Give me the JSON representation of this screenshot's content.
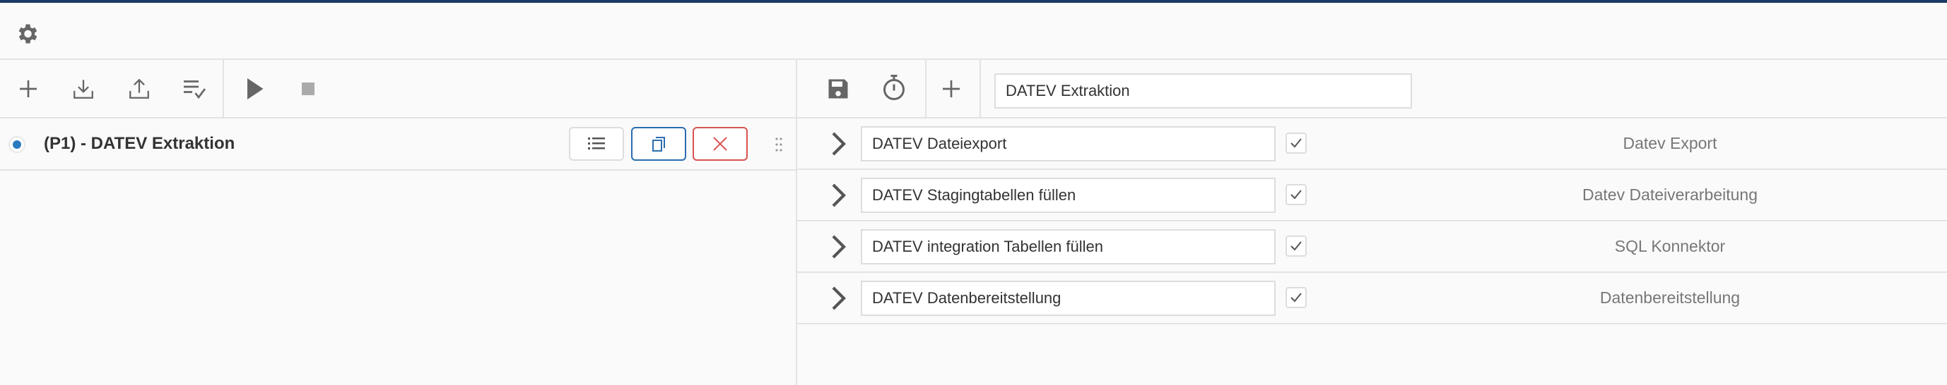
{
  "header": {
    "settings_icon": "gear-icon"
  },
  "left_toolbar": {
    "icons": [
      "plus-icon",
      "download-icon",
      "upload-icon",
      "list-check-icon",
      "play-icon",
      "stop-icon"
    ]
  },
  "right_toolbar": {
    "icons": [
      "save-icon",
      "timer-icon",
      "plus-icon"
    ],
    "name_value": "DATEV Extraktion"
  },
  "process": {
    "title": "(P1) - DATEV Extraktion",
    "selected": true
  },
  "colors": {
    "accent": "#2a7ac0",
    "danger": "#d9534f",
    "topbar": "#1b3a66"
  },
  "steps": [
    {
      "name": "DATEV Dateiexport",
      "enabled": true,
      "type": "Datev Export"
    },
    {
      "name": "DATEV Stagingtabellen füllen",
      "enabled": true,
      "type": "Datev Dateiverarbeitung"
    },
    {
      "name": "DATEV integration Tabellen füllen",
      "enabled": true,
      "type": "SQL Konnektor"
    },
    {
      "name": "DATEV Datenbereitstellung",
      "enabled": true,
      "type": "Datenbereitstellung"
    }
  ]
}
